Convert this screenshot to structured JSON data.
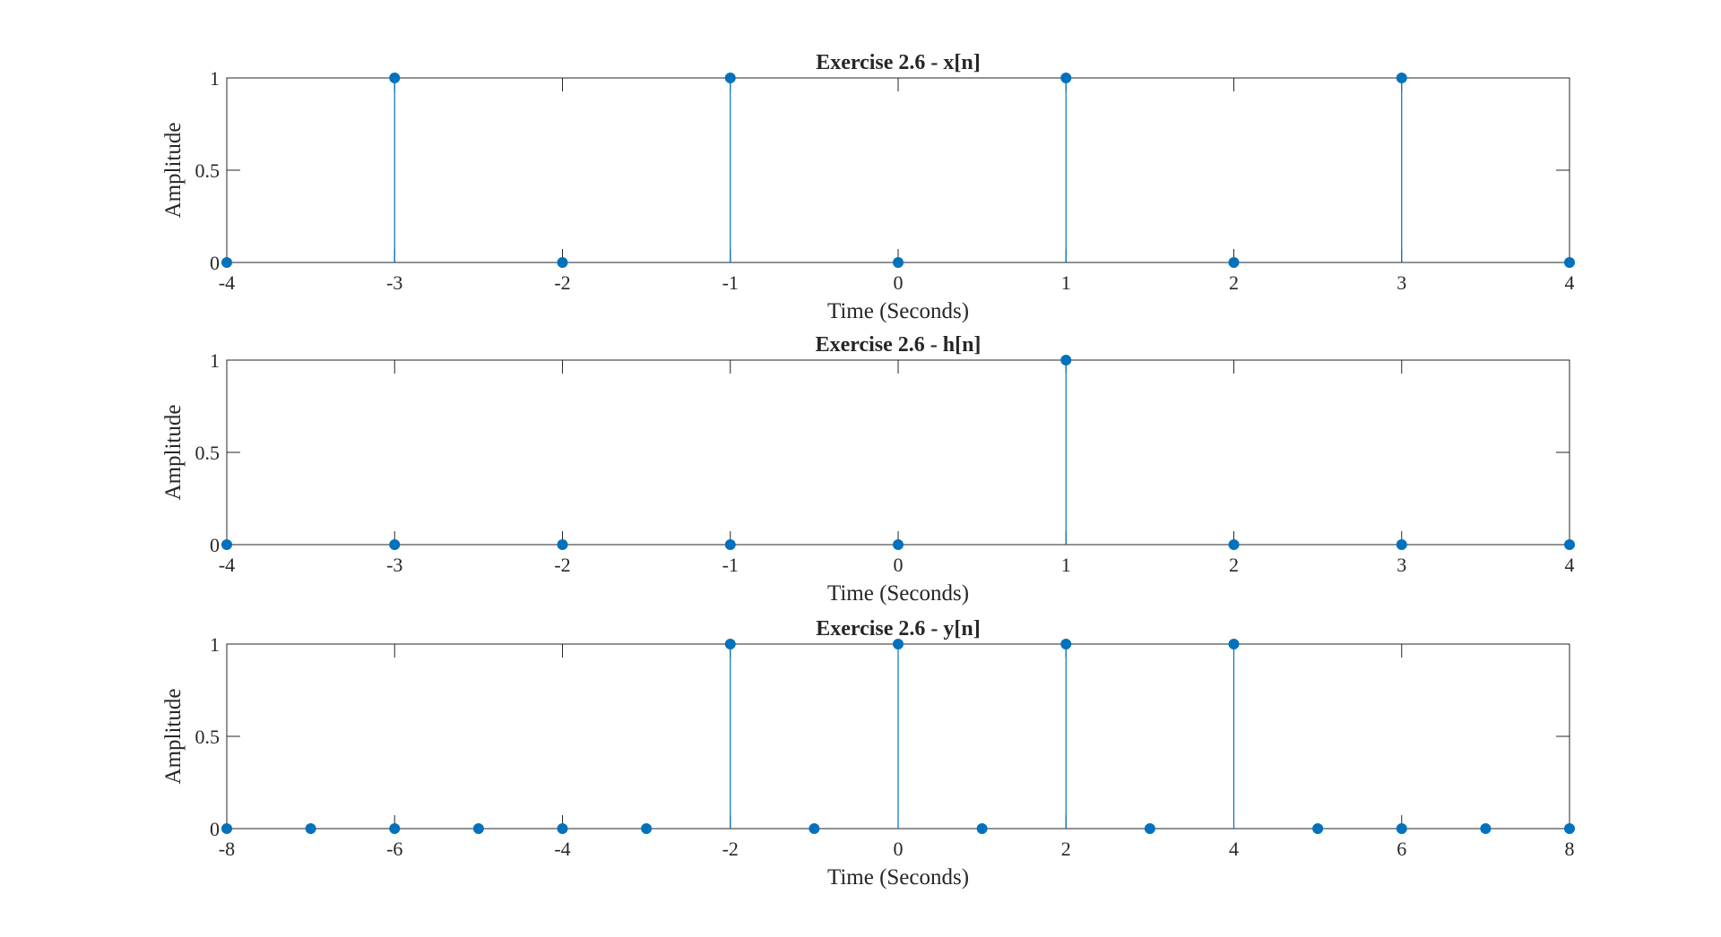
{
  "chart_data": [
    {
      "type": "stem",
      "title": "Exercise 2.6 - x[n]",
      "xlabel": "Time (Seconds)",
      "ylabel": "Amplitude",
      "xlim": [
        -4,
        4
      ],
      "ylim": [
        0,
        1
      ],
      "xticks": [
        -4,
        -3,
        -2,
        -1,
        0,
        1,
        2,
        3,
        4
      ],
      "yticks": [
        0,
        0.5,
        1
      ],
      "x": [
        -4,
        -3,
        -2,
        -1,
        0,
        1,
        2,
        3,
        4
      ],
      "values": [
        0,
        1,
        0,
        1,
        0,
        1,
        0,
        1,
        0
      ],
      "grid": false,
      "color": "#0072BD"
    },
    {
      "type": "stem",
      "title": "Exercise 2.6 - h[n]",
      "xlabel": "Time (Seconds)",
      "ylabel": "Amplitude",
      "xlim": [
        -4,
        4
      ],
      "ylim": [
        0,
        1
      ],
      "xticks": [
        -4,
        -3,
        -2,
        -1,
        0,
        1,
        2,
        3,
        4
      ],
      "yticks": [
        0,
        0.5,
        1
      ],
      "x": [
        -4,
        -3,
        -2,
        -1,
        0,
        1,
        2,
        3,
        4
      ],
      "values": [
        0,
        0,
        0,
        0,
        0,
        1,
        0,
        0,
        0
      ],
      "grid": false,
      "color": "#0072BD"
    },
    {
      "type": "stem",
      "title": "Exercise 2.6 - y[n]",
      "xlabel": "Time (Seconds)",
      "ylabel": "Amplitude",
      "xlim": [
        -8,
        8
      ],
      "ylim": [
        0,
        1
      ],
      "xticks": [
        -8,
        -6,
        -4,
        -2,
        0,
        2,
        4,
        6,
        8
      ],
      "yticks": [
        0,
        0.5,
        1
      ],
      "x": [
        -8,
        -7,
        -6,
        -5,
        -4,
        -3,
        -2,
        -1,
        0,
        1,
        2,
        3,
        4,
        5,
        6,
        7,
        8
      ],
      "values": [
        0,
        0,
        0,
        0,
        0,
        0,
        1,
        0,
        1,
        0,
        1,
        0,
        1,
        0,
        0,
        0,
        0
      ],
      "grid": false,
      "color": "#0072BD"
    }
  ]
}
